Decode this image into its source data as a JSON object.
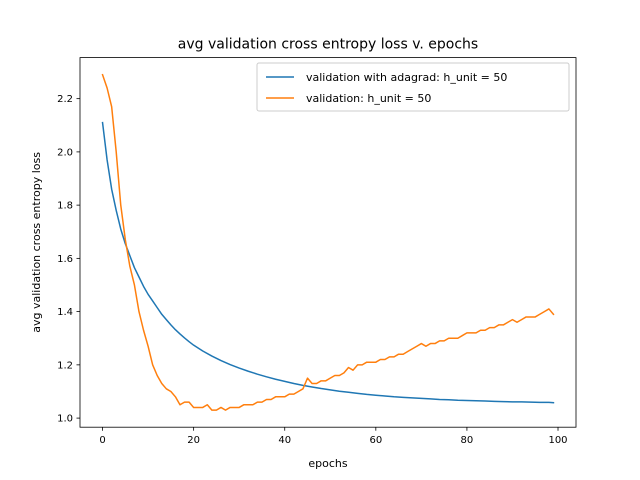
{
  "chart_data": {
    "type": "line",
    "title": "avg validation cross entropy loss v. epochs",
    "xlabel": "epochs",
    "ylabel": "avg validation cross entropy loss",
    "xlim": [
      -4.95,
      103.95
    ],
    "ylim": [
      0.9658,
      2.3542
    ],
    "xticks": [
      0,
      20,
      40,
      60,
      80,
      100
    ],
    "yticks": [
      1.0,
      1.2,
      1.4,
      1.6,
      1.8,
      2.0,
      2.2
    ],
    "ytick_labels": [
      "1.0",
      "1.2",
      "1.4",
      "1.6",
      "1.8",
      "2.0",
      "2.2"
    ],
    "grid": false,
    "legend_position": "upper-right",
    "series": [
      {
        "name": "validation with adagrad: h_unit = 50",
        "color": "#1f77b4",
        "x": [
          0,
          1,
          2,
          3,
          4,
          5,
          6,
          7,
          8,
          9,
          10,
          11,
          12,
          13,
          14,
          15,
          16,
          17,
          18,
          19,
          20,
          22,
          24,
          26,
          28,
          30,
          32,
          34,
          36,
          38,
          40,
          42,
          44,
          46,
          48,
          50,
          52,
          54,
          56,
          58,
          60,
          62,
          64,
          66,
          68,
          70,
          72,
          74,
          76,
          78,
          80,
          82,
          84,
          86,
          88,
          90,
          92,
          94,
          96,
          98,
          99
        ],
        "values": [
          2.11,
          1.97,
          1.86,
          1.78,
          1.71,
          1.655,
          1.61,
          1.565,
          1.53,
          1.495,
          1.465,
          1.44,
          1.415,
          1.39,
          1.37,
          1.35,
          1.332,
          1.316,
          1.301,
          1.287,
          1.274,
          1.252,
          1.233,
          1.216,
          1.201,
          1.188,
          1.176,
          1.165,
          1.155,
          1.146,
          1.138,
          1.13,
          1.123,
          1.117,
          1.111,
          1.106,
          1.101,
          1.097,
          1.093,
          1.089,
          1.086,
          1.083,
          1.08,
          1.078,
          1.076,
          1.074,
          1.072,
          1.07,
          1.069,
          1.067,
          1.066,
          1.065,
          1.064,
          1.063,
          1.062,
          1.061,
          1.061,
          1.06,
          1.059,
          1.059,
          1.058
        ]
      },
      {
        "name": "validation: h_unit = 50",
        "color": "#ff7f0e",
        "x": [
          0,
          1,
          2,
          3,
          4,
          5,
          6,
          7,
          8,
          9,
          10,
          11,
          12,
          13,
          14,
          15,
          16,
          17,
          18,
          19,
          20,
          21,
          22,
          23,
          24,
          25,
          26,
          27,
          28,
          29,
          30,
          31,
          32,
          33,
          34,
          35,
          36,
          37,
          38,
          39,
          40,
          41,
          42,
          43,
          44,
          45,
          46,
          47,
          48,
          49,
          50,
          51,
          52,
          53,
          54,
          55,
          56,
          57,
          58,
          59,
          60,
          61,
          62,
          63,
          64,
          65,
          66,
          67,
          68,
          69,
          70,
          71,
          72,
          73,
          74,
          75,
          76,
          77,
          78,
          79,
          80,
          81,
          82,
          83,
          84,
          85,
          86,
          87,
          88,
          89,
          90,
          91,
          92,
          93,
          94,
          95,
          96,
          97,
          98,
          99
        ],
        "values": [
          2.29,
          2.24,
          2.17,
          2.0,
          1.8,
          1.67,
          1.57,
          1.5,
          1.4,
          1.33,
          1.27,
          1.2,
          1.16,
          1.13,
          1.11,
          1.1,
          1.08,
          1.05,
          1.06,
          1.06,
          1.04,
          1.04,
          1.04,
          1.05,
          1.03,
          1.03,
          1.04,
          1.03,
          1.04,
          1.04,
          1.04,
          1.05,
          1.05,
          1.05,
          1.06,
          1.06,
          1.07,
          1.07,
          1.08,
          1.08,
          1.08,
          1.09,
          1.09,
          1.1,
          1.11,
          1.15,
          1.13,
          1.13,
          1.14,
          1.14,
          1.15,
          1.16,
          1.16,
          1.17,
          1.19,
          1.18,
          1.2,
          1.2,
          1.21,
          1.21,
          1.21,
          1.22,
          1.22,
          1.23,
          1.23,
          1.24,
          1.24,
          1.25,
          1.26,
          1.27,
          1.28,
          1.27,
          1.28,
          1.28,
          1.29,
          1.29,
          1.3,
          1.3,
          1.3,
          1.31,
          1.32,
          1.32,
          1.32,
          1.33,
          1.33,
          1.34,
          1.34,
          1.35,
          1.35,
          1.36,
          1.37,
          1.36,
          1.37,
          1.38,
          1.38,
          1.38,
          1.39,
          1.4,
          1.41,
          1.39
        ]
      }
    ]
  }
}
